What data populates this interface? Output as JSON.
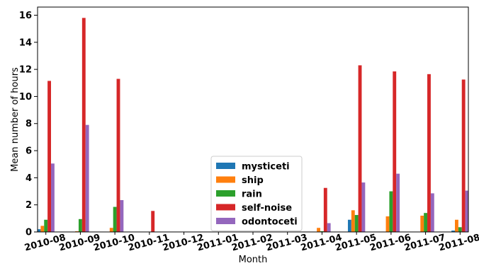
{
  "chart_data": {
    "type": "bar",
    "xlabel": "Month",
    "ylabel": "Mean number of hours",
    "ylim": [
      0,
      16.6
    ],
    "yticks": [
      0,
      2,
      4,
      6,
      8,
      10,
      12,
      14,
      16
    ],
    "grid": false,
    "legend_position": "lower center",
    "categories": [
      "2010-08",
      "2010-09",
      "2010-10",
      "2010-11",
      "2010-12",
      "2011-01",
      "2011-02",
      "2011-03",
      "2011-04",
      "2011-05",
      "2011-06",
      "2011-07",
      "2011-08"
    ],
    "series": [
      {
        "name": "mysticeti",
        "color": "#1f77b4",
        "values": [
          0.2,
          0.0,
          0.0,
          0.0,
          0.0,
          0.0,
          0.0,
          0.0,
          0.0,
          0.9,
          0.0,
          0.0,
          0.1
        ]
      },
      {
        "name": "ship",
        "color": "#ff7f0e",
        "values": [
          0.45,
          0.05,
          0.3,
          0.0,
          0.0,
          0.0,
          0.0,
          0.0,
          0.3,
          1.6,
          1.15,
          1.2,
          0.9
        ]
      },
      {
        "name": "rain",
        "color": "#2ca02c",
        "values": [
          0.9,
          0.95,
          1.85,
          0.0,
          0.0,
          0.0,
          0.0,
          0.0,
          0.05,
          1.25,
          3.0,
          1.4,
          0.35
        ]
      },
      {
        "name": "self-noise",
        "color": "#d62728",
        "values": [
          11.15,
          15.8,
          11.3,
          1.55,
          0.0,
          0.0,
          0.0,
          0.0,
          3.25,
          12.3,
          11.85,
          11.65,
          11.25
        ]
      },
      {
        "name": "odontoceti",
        "color": "#9467bd",
        "values": [
          5.05,
          7.9,
          2.35,
          0.0,
          0.0,
          0.0,
          0.0,
          0.0,
          0.65,
          3.65,
          4.3,
          2.85,
          3.05
        ]
      }
    ]
  }
}
